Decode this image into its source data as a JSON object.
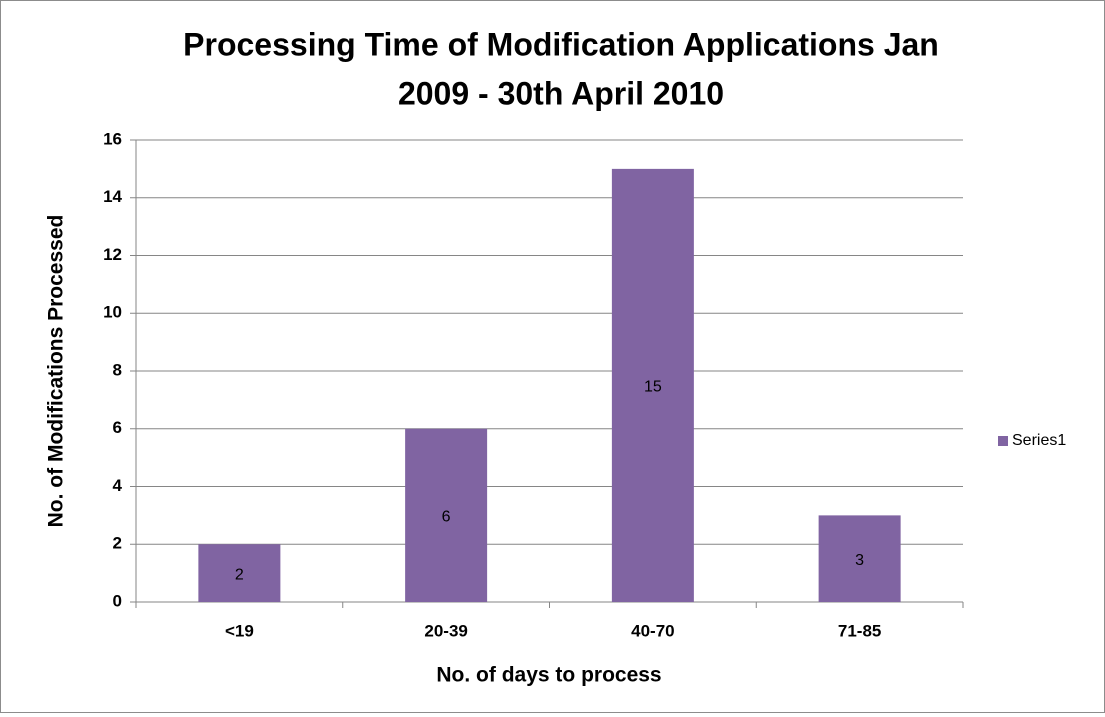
{
  "chart_data": {
    "type": "bar",
    "title": [
      "Processing Time of Modification Applications Jan",
      "2009 - 30th April 2010"
    ],
    "x_label": "No. of days to process",
    "y_label": "No. of Modifications Processed",
    "categories": [
      "<19",
      "20-39",
      "40-70",
      "71-85"
    ],
    "series": [
      {
        "name": "Series1",
        "color": "#8064a2",
        "values": [
          2,
          6,
          15,
          3
        ]
      }
    ],
    "ylim": [
      0,
      16
    ],
    "yticks": [
      0,
      2,
      4,
      6,
      8,
      10,
      12,
      14,
      16
    ],
    "grid": true,
    "legend": "right"
  }
}
